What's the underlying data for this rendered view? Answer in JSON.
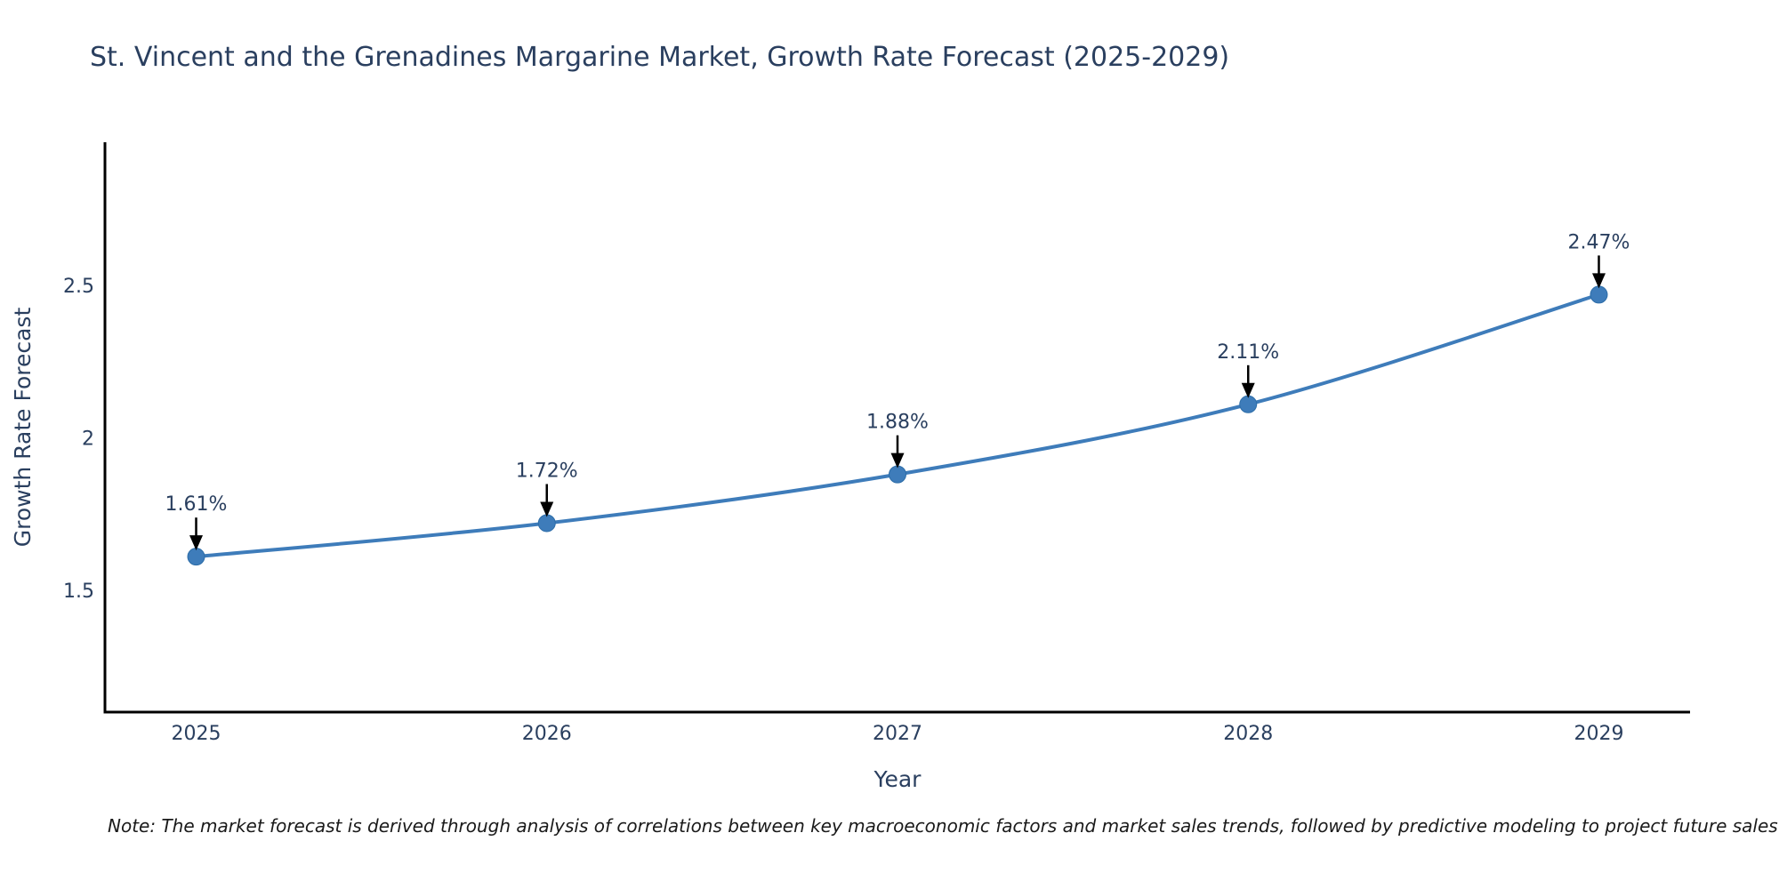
{
  "figure": {
    "title": "St. Vincent and the Grenadines Margarine Market, Growth Rate Forecast (2025-2029)",
    "note": "Note: The market forecast is derived through analysis of correlations between key macroeconomic factors and market sales trends, followed by predictive modeling to project future sales"
  },
  "chart_data": {
    "type": "line",
    "title": "St. Vincent and the Grenadines Margarine Market, Growth Rate Forecast (2025-2029)",
    "xlabel": "Year",
    "ylabel": "Growth Rate Forecast",
    "x": [
      2025,
      2026,
      2027,
      2028,
      2029
    ],
    "values": [
      1.61,
      1.72,
      1.88,
      2.11,
      2.47
    ],
    "point_labels": [
      "1.61%",
      "1.72%",
      "1.88%",
      "2.11%",
      "2.47%"
    ],
    "xticks": [
      2025,
      2026,
      2027,
      2028,
      2029
    ],
    "xtick_labels": [
      "2025",
      "2026",
      "2027",
      "2028",
      "2029"
    ],
    "yticks": [
      1.5,
      2,
      2.5
    ],
    "ytick_labels": [
      "1.5",
      "2",
      "2.5"
    ],
    "xlim": [
      2024.74,
      2029.26
    ],
    "ylim": [
      1.1,
      2.97
    ],
    "grid": false,
    "legend": false,
    "line_color": "#3e7cba",
    "marker_color": "#3e7cba",
    "marker_edge_color": "#2d6da8",
    "axis_color": "#000000",
    "text_color": "#2a3f5f",
    "annotation_arrow_color": "#000000",
    "note_color": "#1a1a1a"
  }
}
